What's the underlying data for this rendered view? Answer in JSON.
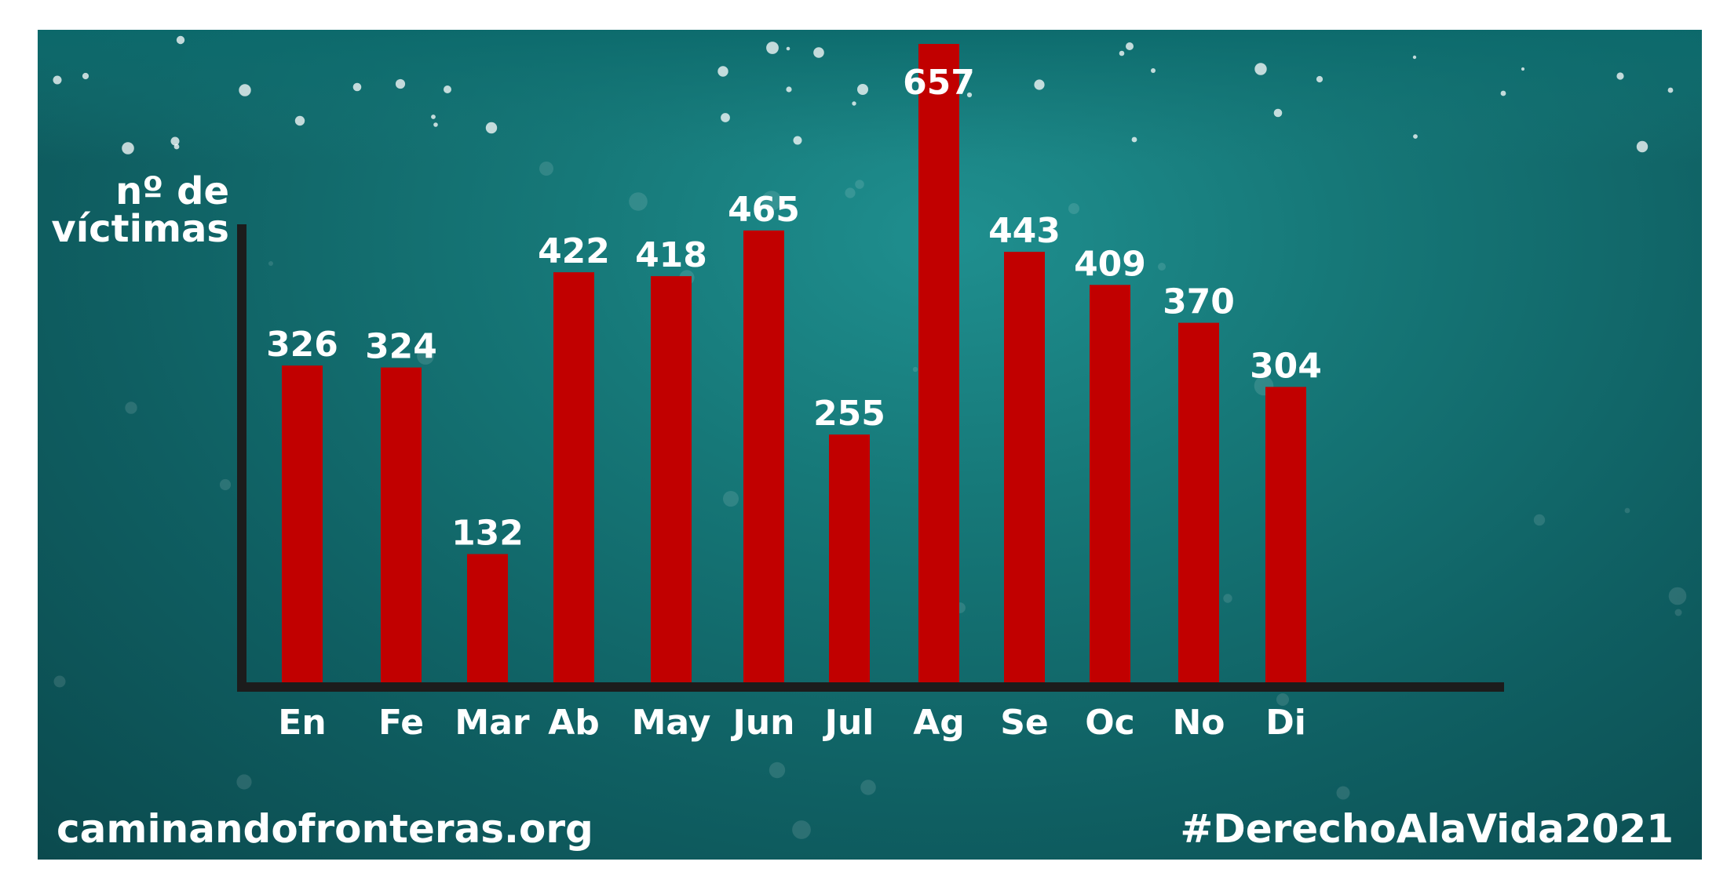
{
  "footer": {
    "website": "caminandofronteras.org",
    "hashtag": "#DerechoAlaVida2021"
  },
  "colors": {
    "bar": "#c10000",
    "axis": "#1c1c1c",
    "background": "#167878",
    "text": "#ffffff"
  },
  "chart_data": {
    "type": "bar",
    "ylabel_lines": [
      "nº de",
      "víctimas"
    ],
    "categories": [
      "En",
      "Fe",
      "Mar",
      "Ab",
      "May",
      "Jun",
      "Jul",
      "Ag",
      "Se",
      "Oc",
      "No",
      "Di"
    ],
    "values": [
      326,
      324,
      132,
      422,
      418,
      465,
      255,
      657,
      443,
      409,
      370,
      304
    ],
    "data_labels": true,
    "grid": false,
    "ylim": [
      0,
      657
    ]
  }
}
